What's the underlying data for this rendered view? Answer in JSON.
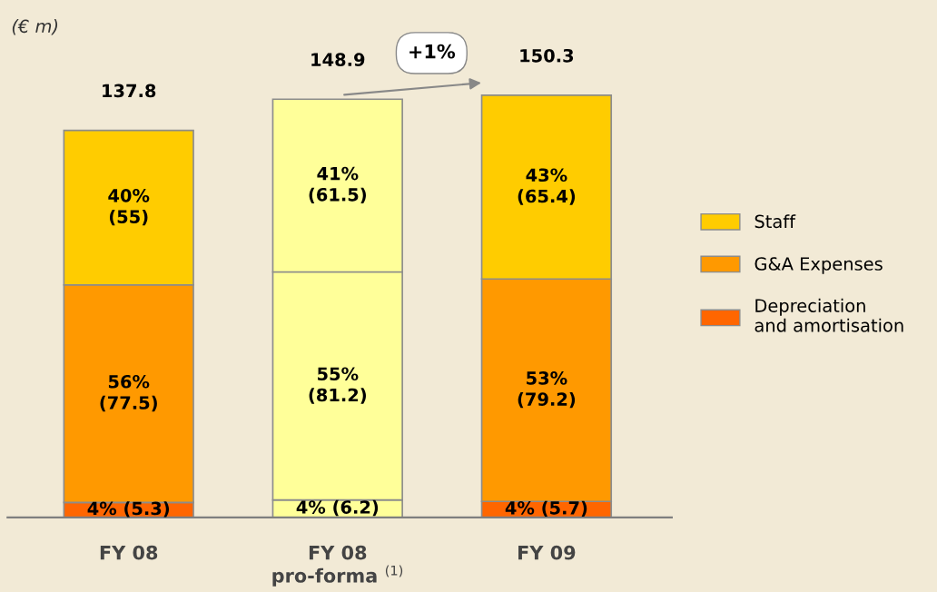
{
  "chart_data": {
    "type": "bar",
    "stacked": true,
    "categories": [
      "FY 08",
      "FY 08\npro-forma $^{(1)}$",
      "FY 09"
    ],
    "series": [
      {
        "name": "Depreciation\nand amortisation",
        "color": "#ff6600",
        "colors": [
          "#ff6600",
          "#ffff99",
          "#ff6600"
        ],
        "values": [
          5.3,
          6.2,
          5.7
        ],
        "value_labels": [
          "4% (5.3)",
          "4% (6.2)",
          "4% (5.7)"
        ]
      },
      {
        "name": "G&A Expenses",
        "color": "#ff9900",
        "colors": [
          "#ff9900",
          "#ffff99",
          "#ff9900"
        ],
        "values": [
          77.5,
          81.2,
          79.2
        ],
        "value_labels": [
          "56%\n(77.5)",
          "55%\n(81.2)",
          "53%\n(79.2)"
        ]
      },
      {
        "name": "Staff",
        "color": "#ffcc00",
        "colors": [
          "#ffcc00",
          "#ffff99",
          "#ffcc00"
        ],
        "values": [
          55,
          61.5,
          65.4
        ],
        "value_labels": [
          "40%\n(55)",
          "41%\n(61.5)",
          "43%\n(65.4)"
        ]
      }
    ],
    "totals": [
      "137.8",
      "148.9",
      "150.3"
    ],
    "annotations": [
      "(€ m)",
      "+1%"
    ],
    "legend": "right"
  }
}
